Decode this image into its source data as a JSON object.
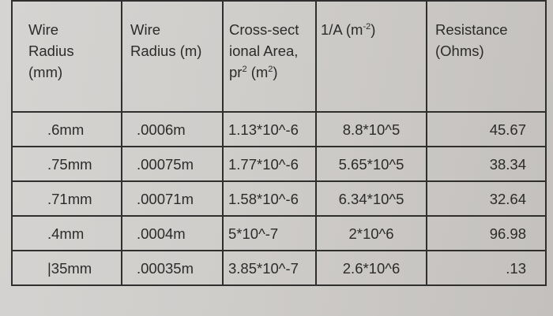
{
  "headers": [
    {
      "id": "h1",
      "label": "Wire\nRadius\n(mm)"
    },
    {
      "id": "h2",
      "label": "Wire\nRadius (m)"
    },
    {
      "id": "h3",
      "line1": "Cross-sect",
      "line2": "ional Area,",
      "line3_pre": "pr",
      "line3_sup1": "2",
      "line3_mid": " (m",
      "line3_sup2": "2",
      "line3_post": ")"
    },
    {
      "id": "h4",
      "pre": "1/A (m",
      "sup": "-2",
      "post": ")"
    },
    {
      "id": "h5",
      "label": "Resistance\n(Ohms)"
    }
  ],
  "rows": [
    [
      ".6mm",
      ".0006m",
      "1.13*10^-6",
      "8.8*10^5",
      "45.67"
    ],
    [
      ".75mm",
      ".00075m",
      "1.77*10^-6",
      "5.65*10^5",
      "38.34"
    ],
    [
      ".71mm",
      ".00071m",
      "1.58*10^-6",
      "6.34*10^5",
      "32.64"
    ],
    [
      ".4mm",
      ".0004m",
      "5*10^-7",
      "2*10^6",
      "96.98"
    ],
    [
      "|35mm",
      ".00035m",
      "3.85*10^-7",
      "2.6*10^6",
      ".13"
    ]
  ]
}
